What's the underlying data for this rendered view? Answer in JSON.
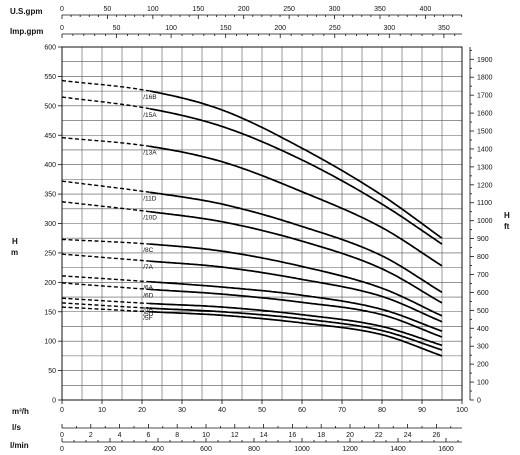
{
  "chart_data": {
    "type": "line",
    "title": "",
    "axes": {
      "y_left": {
        "label": "H\nm",
        "min": 0,
        "max": 600,
        "major_step": 50,
        "ticks": [
          "0",
          "50",
          "100",
          "150",
          "200",
          "250",
          "300",
          "350",
          "400",
          "450",
          "500",
          "550",
          "600"
        ]
      },
      "y_right": {
        "label": "H\nft",
        "min": 0,
        "max": 1968.5,
        "ticks": [
          "0",
          "100",
          "200",
          "300",
          "400",
          "500",
          "600",
          "700",
          "800",
          "900",
          "1000",
          "1100",
          "1200",
          "1300",
          "1400",
          "1500",
          "1600",
          "1700",
          "1800",
          "1900"
        ]
      },
      "x_main": {
        "label": "m³/h",
        "min": 0,
        "max": 100,
        "ticks": [
          "0",
          "10",
          "20",
          "30",
          "40",
          "50",
          "60",
          "70",
          "80",
          "90",
          "100"
        ]
      },
      "x_ls": {
        "label": "l/s",
        "min": 0,
        "max": 27.78,
        "ticks": [
          "0",
          "2",
          "4",
          "6",
          "8",
          "10",
          "12",
          "14",
          "16",
          "18",
          "20",
          "22",
          "24",
          "26"
        ]
      },
      "x_lmin": {
        "label": "l/min",
        "min": 0,
        "max": 1666.7,
        "ticks": [
          "0",
          "200",
          "400",
          "600",
          "800",
          "1000",
          "1200",
          "1400",
          "1600"
        ]
      },
      "x_usgpm": {
        "label": "U.S.gpm",
        "min": 0,
        "max": 440.3,
        "ticks": [
          "0",
          "50",
          "100",
          "150",
          "200",
          "250",
          "300",
          "350",
          "400"
        ]
      },
      "x_impgpm": {
        "label": "Imp.gpm",
        "min": 0,
        "max": 366.6,
        "ticks": [
          "0",
          "50",
          "100",
          "150",
          "200",
          "250",
          "300",
          "350"
        ]
      }
    },
    "grid": true,
    "dashed_range": [
      0,
      22
    ],
    "solid_range": [
      22,
      95
    ],
    "series": [
      {
        "name": "/16B",
        "x": [
          0,
          22,
          40,
          60,
          80,
          95
        ],
        "y": [
          543,
          525,
          493,
          428,
          348,
          275
        ]
      },
      {
        "name": "/15A",
        "x": [
          0,
          22,
          40,
          60,
          80,
          95
        ],
        "y": [
          515,
          495,
          465,
          408,
          333,
          265
        ]
      },
      {
        "name": "/13A",
        "x": [
          0,
          22,
          40,
          60,
          80,
          95
        ],
        "y": [
          446,
          431,
          405,
          354,
          293,
          228
        ]
      },
      {
        "name": "/11D",
        "x": [
          0,
          22,
          40,
          60,
          80,
          95
        ],
        "y": [
          372,
          353,
          333,
          295,
          245,
          183
        ]
      },
      {
        "name": "/10D",
        "x": [
          0,
          22,
          40,
          60,
          80,
          95
        ],
        "y": [
          337,
          320,
          303,
          270,
          223,
          165
        ]
      },
      {
        "name": "/8C",
        "x": [
          0,
          22,
          40,
          60,
          80,
          95
        ],
        "y": [
          273,
          265,
          253,
          227,
          190,
          143
        ]
      },
      {
        "name": "/7A",
        "x": [
          0,
          22,
          40,
          60,
          80,
          95
        ],
        "y": [
          248,
          236,
          226,
          205,
          176,
          133
        ]
      },
      {
        "name": "/6A",
        "x": [
          0,
          22,
          40,
          60,
          80,
          95
        ],
        "y": [
          211,
          201,
          192,
          178,
          154,
          117
        ]
      },
      {
        "name": "/6D",
        "x": [
          0,
          22,
          40,
          60,
          80,
          95
        ],
        "y": [
          199,
          188,
          180,
          166,
          145,
          107
        ]
      },
      {
        "name": "/5A",
        "x": [
          0,
          22,
          40,
          60,
          80,
          95
        ],
        "y": [
          173,
          164,
          158,
          145,
          125,
          93
        ]
      },
      {
        "name": "/5D",
        "x": [
          0,
          22,
          40,
          60,
          80,
          95
        ],
        "y": [
          165,
          156,
          150,
          138,
          118,
          85
        ]
      },
      {
        "name": "/5F",
        "x": [
          0,
          22,
          40,
          60,
          80,
          95
        ],
        "y": [
          158,
          150,
          144,
          131,
          111,
          75
        ]
      }
    ]
  }
}
